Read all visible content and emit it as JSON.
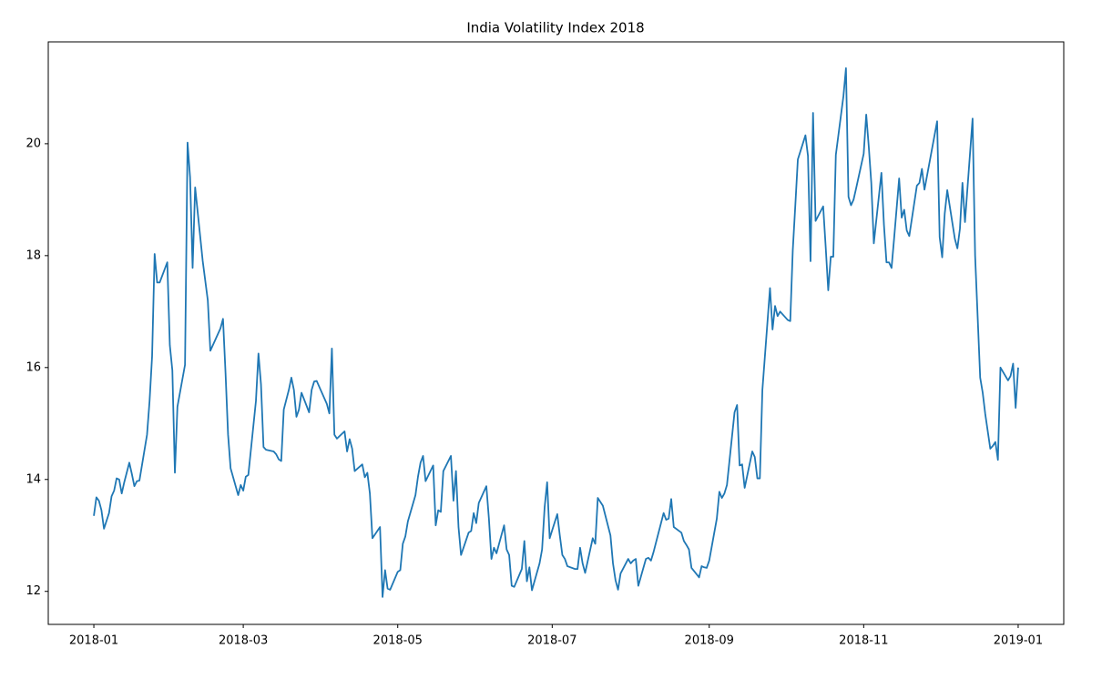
{
  "chart_data": {
    "type": "line",
    "title": "India Volatility Index 2018",
    "color": "#1f77b4",
    "x": [
      0,
      1,
      2,
      3,
      4,
      6,
      7,
      8,
      9,
      10,
      11,
      12,
      14,
      15,
      16,
      17,
      18,
      21,
      22,
      23,
      24,
      25,
      26,
      29,
      30,
      31,
      32,
      33,
      36,
      37,
      38,
      39,
      40,
      43,
      45,
      46,
      47,
      50,
      51,
      52,
      53,
      54,
      57,
      58,
      59,
      60,
      61,
      64,
      65,
      66,
      67,
      68,
      71,
      72,
      73,
      74,
      75,
      77,
      78,
      79,
      80,
      81,
      82,
      85,
      86,
      87,
      88,
      92,
      93,
      94,
      95,
      96,
      99,
      100,
      101,
      102,
      103,
      106,
      107,
      108,
      109,
      110,
      113,
      114,
      115,
      116,
      117,
      120,
      121,
      122,
      123,
      124,
      127,
      128,
      129,
      130,
      131,
      134,
      135,
      136,
      137,
      138,
      141,
      142,
      143,
      144,
      145,
      148,
      149,
      150,
      151,
      152,
      155,
      156,
      157,
      158,
      159,
      162,
      163,
      164,
      165,
      166,
      169,
      170,
      171,
      172,
      173,
      176,
      177,
      178,
      179,
      180,
      183,
      184,
      185,
      186,
      187,
      190,
      191,
      192,
      193,
      194,
      197,
      198,
      199,
      200,
      201,
      204,
      205,
      206,
      207,
      208,
      211,
      212,
      213,
      214,
      215,
      218,
      219,
      220,
      221,
      225,
      226,
      227,
      228,
      229,
      232,
      233,
      234,
      235,
      236,
      239,
      240,
      241,
      242,
      243,
      246,
      247,
      248,
      249,
      250,
      253,
      254,
      255,
      256,
      257,
      260,
      261,
      262,
      263,
      264,
      267,
      268,
      269,
      270,
      271,
      274,
      275,
      276,
      277,
      278,
      281,
      282,
      283,
      284,
      285,
      288,
      289,
      290,
      291,
      292,
      293,
      296,
      297,
      298,
      299,
      300,
      301,
      304,
      305,
      306,
      307,
      308,
      311,
      312,
      313,
      314,
      315,
      316,
      318,
      319,
      320,
      321,
      322,
      325,
      326,
      327,
      328,
      333,
      334,
      335,
      336,
      337,
      340,
      341,
      342,
      343,
      344,
      347,
      348,
      350,
      351,
      352,
      354,
      355,
      356,
      357,
      358,
      361,
      362,
      363,
      364,
      365
    ],
    "values": [
      13.35,
      13.68,
      13.62,
      13.45,
      13.12,
      13.4,
      13.7,
      13.8,
      14.02,
      14.0,
      13.75,
      13.95,
      14.3,
      14.1,
      13.88,
      13.97,
      13.98,
      14.8,
      15.4,
      16.2,
      18.03,
      17.52,
      17.52,
      17.88,
      16.4,
      15.95,
      14.12,
      15.3,
      16.05,
      20.02,
      19.4,
      17.78,
      19.22,
      17.9,
      17.2,
      16.3,
      16.4,
      16.7,
      16.87,
      15.9,
      14.8,
      14.2,
      13.72,
      13.9,
      13.8,
      14.05,
      14.08,
      15.4,
      16.25,
      15.7,
      14.58,
      14.53,
      14.5,
      14.45,
      14.36,
      14.33,
      15.25,
      15.6,
      15.82,
      15.6,
      15.12,
      15.25,
      15.55,
      15.2,
      15.6,
      15.75,
      15.76,
      15.35,
      15.18,
      16.34,
      14.8,
      14.73,
      14.86,
      14.5,
      14.72,
      14.55,
      14.15,
      14.27,
      14.04,
      14.12,
      13.75,
      12.95,
      13.15,
      11.9,
      12.38,
      12.05,
      12.03,
      12.35,
      12.38,
      12.85,
      12.98,
      13.25,
      13.72,
      14.05,
      14.3,
      14.42,
      13.97,
      14.25,
      13.18,
      13.45,
      13.42,
      14.15,
      14.42,
      13.62,
      14.15,
      13.15,
      12.65,
      13.05,
      13.08,
      13.4,
      13.22,
      13.58,
      13.88,
      13.3,
      12.58,
      12.78,
      12.68,
      13.18,
      12.75,
      12.65,
      12.1,
      12.08,
      12.4,
      12.9,
      12.18,
      12.43,
      12.02,
      12.5,
      12.75,
      13.5,
      13.95,
      12.95,
      13.38,
      13.0,
      12.65,
      12.58,
      12.45,
      12.4,
      12.4,
      12.78,
      12.5,
      12.33,
      12.95,
      12.85,
      13.67,
      13.6,
      13.53,
      13.0,
      12.5,
      12.2,
      12.03,
      12.32,
      12.58,
      12.5,
      12.55,
      12.58,
      12.1,
      12.58,
      12.6,
      12.55,
      12.7,
      13.4,
      13.28,
      13.3,
      13.65,
      13.15,
      13.05,
      12.9,
      12.83,
      12.75,
      12.42,
      12.25,
      12.45,
      12.43,
      12.42,
      12.55,
      13.3,
      13.78,
      13.67,
      13.75,
      13.9,
      15.2,
      15.33,
      14.25,
      14.27,
      13.85,
      14.5,
      14.4,
      14.02,
      14.02,
      15.6,
      17.42,
      16.68,
      17.1,
      16.92,
      17.0,
      16.85,
      16.83,
      18.1,
      18.9,
      19.72,
      20.15,
      19.78,
      17.9,
      20.55,
      18.62,
      18.88,
      18.15,
      17.38,
      17.98,
      17.98,
      19.8,
      20.85,
      21.35,
      19.05,
      18.9,
      19.0,
      19.2,
      19.82,
      20.52,
      19.95,
      19.3,
      18.22,
      19.48,
      18.55,
      17.88,
      17.88,
      17.78,
      18.3,
      19.38,
      18.68,
      18.82,
      18.45,
      18.35,
      19.25,
      19.3,
      19.55,
      19.18,
      20.4,
      18.33,
      17.97,
      18.75,
      19.17,
      18.3,
      18.13,
      18.48,
      19.3,
      18.6,
      20.45,
      18.0,
      15.82,
      15.55,
      15.17,
      14.55,
      14.6,
      14.67,
      14.35,
      16.0,
      15.77,
      15.85,
      16.07,
      15.28,
      16.0
    ],
    "xlim": [
      -18,
      383
    ],
    "xticks": [
      {
        "value": 0,
        "label": "2018-01"
      },
      {
        "value": 59,
        "label": "2018-03"
      },
      {
        "value": 120,
        "label": "2018-05"
      },
      {
        "value": 181,
        "label": "2018-07"
      },
      {
        "value": 243,
        "label": "2018-09"
      },
      {
        "value": 304,
        "label": "2018-11"
      },
      {
        "value": 365,
        "label": "2019-01"
      }
    ],
    "ylim": [
      11.41,
      21.82
    ],
    "yticks": [
      12,
      14,
      16,
      18,
      20
    ]
  }
}
